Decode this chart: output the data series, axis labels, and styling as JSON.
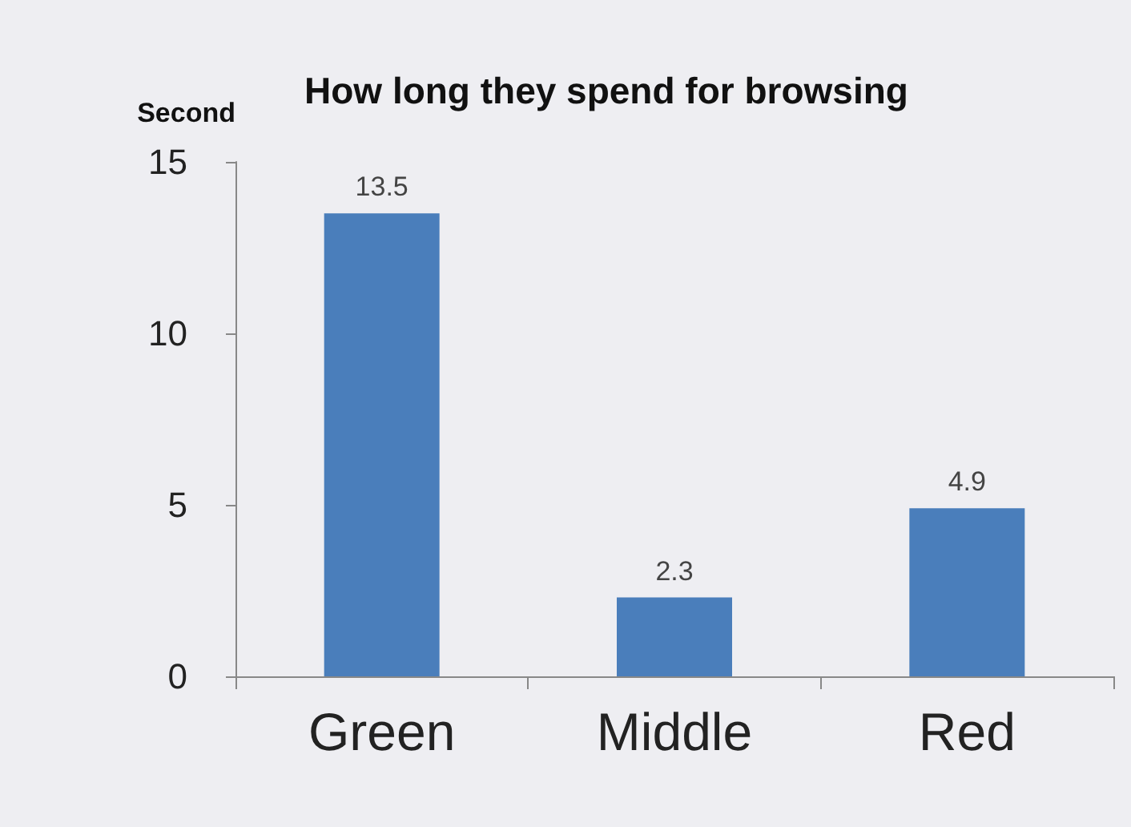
{
  "chart_data": {
    "type": "bar",
    "title": "How long they spend for browsing",
    "ylabel": "Second",
    "categories": [
      "Green",
      "Middle",
      "Red"
    ],
    "values": [
      13.5,
      2.3,
      4.9
    ],
    "color": "#4a7ebb",
    "ylim": [
      0,
      15
    ],
    "yticks": [
      0,
      5,
      10,
      15
    ],
    "grid": false,
    "data_labels": true
  }
}
